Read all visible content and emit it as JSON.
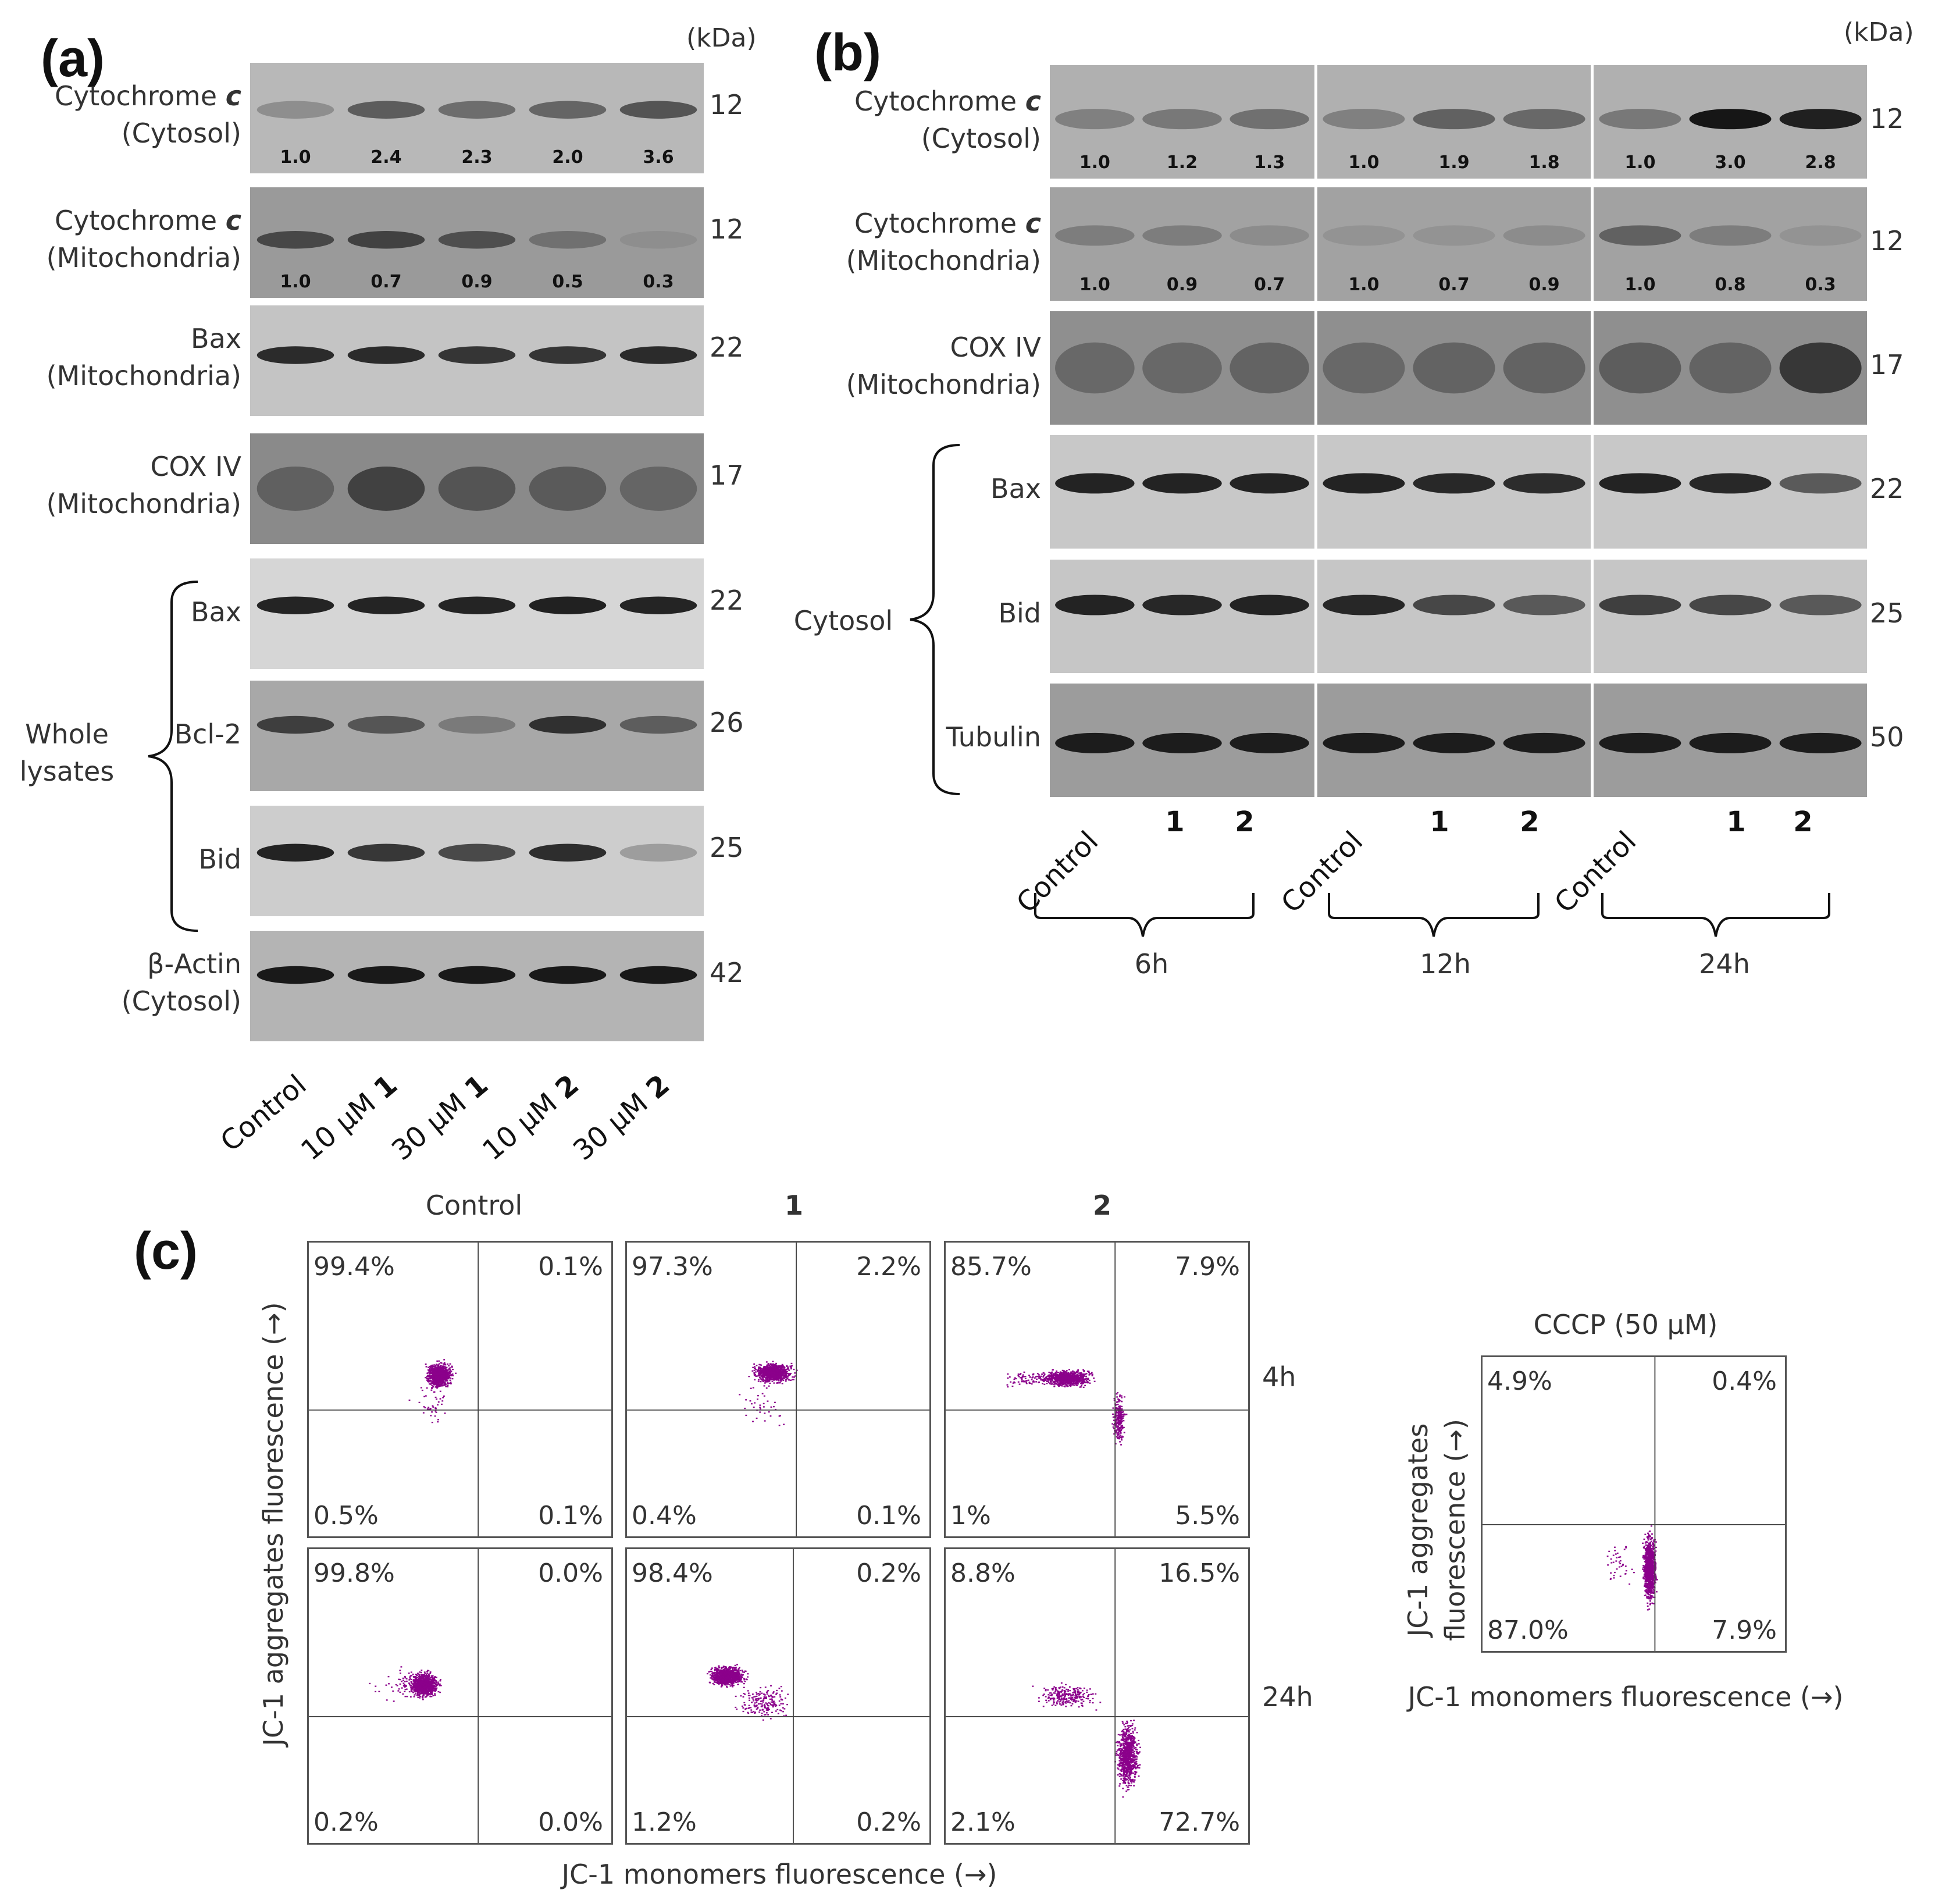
{
  "panel_a": {
    "letter": "(a)",
    "kda": "(kDa)",
    "rows": [
      {
        "label_l1": "Cytochrome ",
        "label_em": "c",
        "label_l2": "(Cytosol)",
        "mw": "12",
        "quant": [
          "1.0",
          "2.4",
          "2.3",
          "2.0",
          "3.6"
        ]
      },
      {
        "label_l1": "Cytochrome ",
        "label_em": "c",
        "label_l2": "(Mitochondria)",
        "mw": "12",
        "quant": [
          "1.0",
          "0.7",
          "0.9",
          "0.5",
          "0.3"
        ]
      },
      {
        "label_l1": "Bax",
        "label_em": "",
        "label_l2": "(Mitochondria)",
        "mw": "22"
      },
      {
        "label_l1": "COX IV",
        "label_em": "",
        "label_l2": "(Mitochondria)",
        "mw": "17"
      },
      {
        "label_l1": "Bax",
        "label_em": "",
        "label_l2": "",
        "mw": "22"
      },
      {
        "label_l1": "Bcl-2",
        "label_em": "",
        "label_l2": "",
        "mw": "26"
      },
      {
        "label_l1": "Bid",
        "label_em": "",
        "label_l2": "",
        "mw": "25"
      },
      {
        "label_l1": "β-Actin",
        "label_em": "",
        "label_l2": "(Cytosol)",
        "mw": "42"
      }
    ],
    "group_label_l1": "Whole",
    "group_label_l2": "lysates",
    "lanes": [
      {
        "text": "Control",
        "bold": ""
      },
      {
        "text": "10 μM ",
        "bold": "1"
      },
      {
        "text": "30 μM ",
        "bold": "1"
      },
      {
        "text": "10 μM ",
        "bold": "2"
      },
      {
        "text": "30 μM ",
        "bold": "2"
      }
    ]
  },
  "panel_b": {
    "letter": "(b)",
    "kda": "(kDa)",
    "rows": [
      {
        "label_l1": "Cytochrome ",
        "label_em": "c",
        "label_l2": "(Cytosol)",
        "mw": "12",
        "quant": [
          "1.0",
          "1.2",
          "1.3",
          "1.0",
          "1.9",
          "1.8",
          "1.0",
          "3.0",
          "2.8"
        ]
      },
      {
        "label_l1": "Cytochrome ",
        "label_em": "c",
        "label_l2": "(Mitochondria)",
        "mw": "12",
        "quant": [
          "1.0",
          "0.9",
          "0.7",
          "1.0",
          "0.7",
          "0.9",
          "1.0",
          "0.8",
          "0.3"
        ]
      },
      {
        "label_l1": "COX IV",
        "label_em": "",
        "label_l2": "(Mitochondria)",
        "mw": "17"
      },
      {
        "label_l1": "Bax",
        "label_em": "",
        "label_l2": "",
        "mw": "22"
      },
      {
        "label_l1": "Bid",
        "label_em": "",
        "label_l2": "",
        "mw": "25"
      },
      {
        "label_l1": "Tubulin",
        "label_em": "",
        "label_l2": "",
        "mw": "50"
      }
    ],
    "group_label": "Cytosol",
    "lanes": [
      "Control",
      "1",
      "2",
      "Control",
      "1",
      "2",
      "Control",
      "1",
      "2"
    ],
    "timepoints": [
      "6h",
      "12h",
      "24h"
    ]
  },
  "panel_c": {
    "letter": "(c)",
    "col_heads": [
      "Control",
      "1",
      "2"
    ],
    "row_heads": [
      "4h",
      "24h"
    ],
    "plots": [
      {
        "ul": "99.4%",
        "ur": "0.1%",
        "ll": "0.5%",
        "lr": "0.1%"
      },
      {
        "ul": "97.3%",
        "ur": "2.2%",
        "ll": "0.4%",
        "lr": "0.1%"
      },
      {
        "ul": "85.7%",
        "ur": "7.9%",
        "ll": "1%",
        "lr": "5.5%"
      },
      {
        "ul": "99.8%",
        "ur": "0.0%",
        "ll": "0.2%",
        "lr": "0.0%"
      },
      {
        "ul": "98.4%",
        "ur": "0.2%",
        "ll": "1.2%",
        "lr": "0.2%"
      },
      {
        "ul": "8.8%",
        "ur": "16.5%",
        "ll": "2.1%",
        "lr": "72.7%"
      }
    ],
    "y_axis": "JC-1 aggregates fluorescence (→)",
    "x_axis": "JC-1 monomers fluorescence (→)",
    "cccp": {
      "title": "CCCP (50 μM)",
      "ul": "4.9%",
      "ur": "0.4%",
      "ll": "87.0%",
      "lr": "7.9%",
      "y_axis_l1": "JC-1 aggregates",
      "y_axis_l2": "fluorescence (→)",
      "x_axis": "JC-1 monomers fluorescence (→)"
    },
    "dot_color": "#8b008b"
  }
}
